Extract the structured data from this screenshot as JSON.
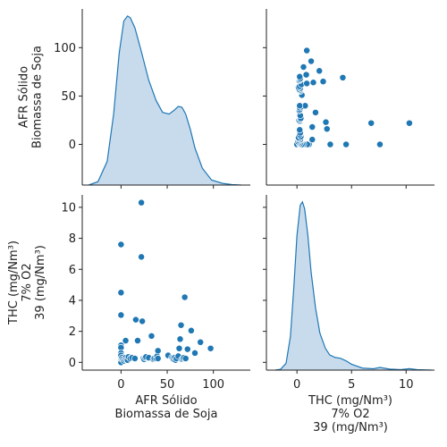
{
  "chart_data": {
    "type": "pairplot",
    "variables": [
      {
        "label_lines": [
          "AFR Sólido",
          "Biomassa de Soja"
        ],
        "lim": [
          -42,
          140
        ],
        "ticks": [
          0,
          50,
          100
        ]
      },
      {
        "label_lines": [
          "THC (mg/Nm³)",
          "7% O2",
          "39 (mg/Nm³)"
        ],
        "lim": [
          -0.5,
          10.8
        ],
        "ticks": [
          0,
          2,
          4,
          6,
          8,
          10
        ],
        "ticks_x": [
          0,
          5,
          10
        ],
        "xlim": [
          -2.8,
          12.6
        ]
      }
    ],
    "colors": {
      "marker": "#1f77b4",
      "fill": "#c5d9ec",
      "line": "#1f77b4",
      "axis": "#222222"
    },
    "points": [
      [
        0,
        7.6
      ],
      [
        0,
        4.5
      ],
      [
        0,
        3.05
      ],
      [
        0,
        1.1
      ],
      [
        0,
        0.95
      ],
      [
        0,
        0.6
      ],
      [
        0,
        0.4
      ],
      [
        0,
        0.3
      ],
      [
        0,
        0.2
      ],
      [
        0,
        0.15
      ],
      [
        0,
        0.1
      ],
      [
        0,
        0.05
      ],
      [
        0,
        0.0
      ],
      [
        0,
        0.25
      ],
      [
        0,
        0.35
      ],
      [
        0,
        0.45
      ],
      [
        1,
        0.3
      ],
      [
        2,
        0.2
      ],
      [
        3,
        0.1
      ],
      [
        4,
        0.2
      ],
      [
        5,
        0.3
      ],
      [
        6,
        0.2
      ],
      [
        7,
        0.15
      ],
      [
        5,
        1.4
      ],
      [
        8,
        0.35
      ],
      [
        10,
        0.25
      ],
      [
        12,
        0.3
      ],
      [
        15,
        0.25
      ],
      [
        16,
        2.75
      ],
      [
        18,
        1.4
      ],
      [
        22,
        10.3
      ],
      [
        22,
        6.8
      ],
      [
        23,
        2.65
      ],
      [
        24,
        0.25
      ],
      [
        25,
        0.2
      ],
      [
        26,
        0.3
      ],
      [
        27,
        0.35
      ],
      [
        30,
        0.3
      ],
      [
        33,
        1.7
      ],
      [
        35,
        0.2
      ],
      [
        36,
        0.25
      ],
      [
        38,
        0.25
      ],
      [
        39,
        0.4
      ],
      [
        40,
        0.75
      ],
      [
        51,
        0.45
      ],
      [
        55,
        0.3
      ],
      [
        56,
        0.25
      ],
      [
        57,
        0.2
      ],
      [
        58,
        0.3
      ],
      [
        59,
        0.15
      ],
      [
        60,
        0.25
      ],
      [
        62,
        0.4
      ],
      [
        63,
        0.9
      ],
      [
        64,
        1.5
      ],
      [
        65,
        2.4
      ],
      [
        66,
        0.2
      ],
      [
        67,
        0.25
      ],
      [
        68,
        0.3
      ],
      [
        69,
        4.2
      ],
      [
        70,
        0.25
      ],
      [
        72,
        0.85
      ],
      [
        76,
        2.05
      ],
      [
        80,
        0.6
      ],
      [
        86,
        1.3
      ],
      [
        97,
        0.9
      ],
      [
        40,
        0.25
      ]
    ],
    "diag_kde": [
      {
        "variable": 0,
        "x": [
          -35,
          -25,
          -15,
          -8,
          -2,
          3,
          7,
          10,
          15,
          22,
          30,
          38,
          45,
          52,
          57,
          62,
          66,
          70,
          75,
          80,
          88,
          98,
          110,
          120,
          130
        ],
        "density": [
          0.0,
          0.02,
          0.14,
          0.42,
          0.78,
          0.97,
          1.0,
          0.99,
          0.93,
          0.79,
          0.62,
          0.5,
          0.43,
          0.42,
          0.44,
          0.465,
          0.46,
          0.42,
          0.33,
          0.22,
          0.1,
          0.03,
          0.01,
          0.003,
          0.0
        ]
      },
      {
        "variable": 1,
        "x": [
          -2,
          -1.5,
          -1,
          -0.6,
          -0.3,
          0,
          0.3,
          0.5,
          0.7,
          1,
          1.3,
          1.7,
          2.1,
          2.6,
          3,
          3.5,
          4,
          4.5,
          5,
          6,
          7,
          7.6,
          8.5,
          9.5,
          10.3,
          11,
          12.3
        ],
        "density": [
          0.0,
          0.005,
          0.04,
          0.2,
          0.48,
          0.8,
          0.98,
          1.0,
          0.96,
          0.8,
          0.58,
          0.37,
          0.22,
          0.13,
          0.09,
          0.075,
          0.07,
          0.055,
          0.035,
          0.012,
          0.008,
          0.016,
          0.006,
          0.003,
          0.009,
          0.003,
          0.0
        ]
      }
    ]
  }
}
